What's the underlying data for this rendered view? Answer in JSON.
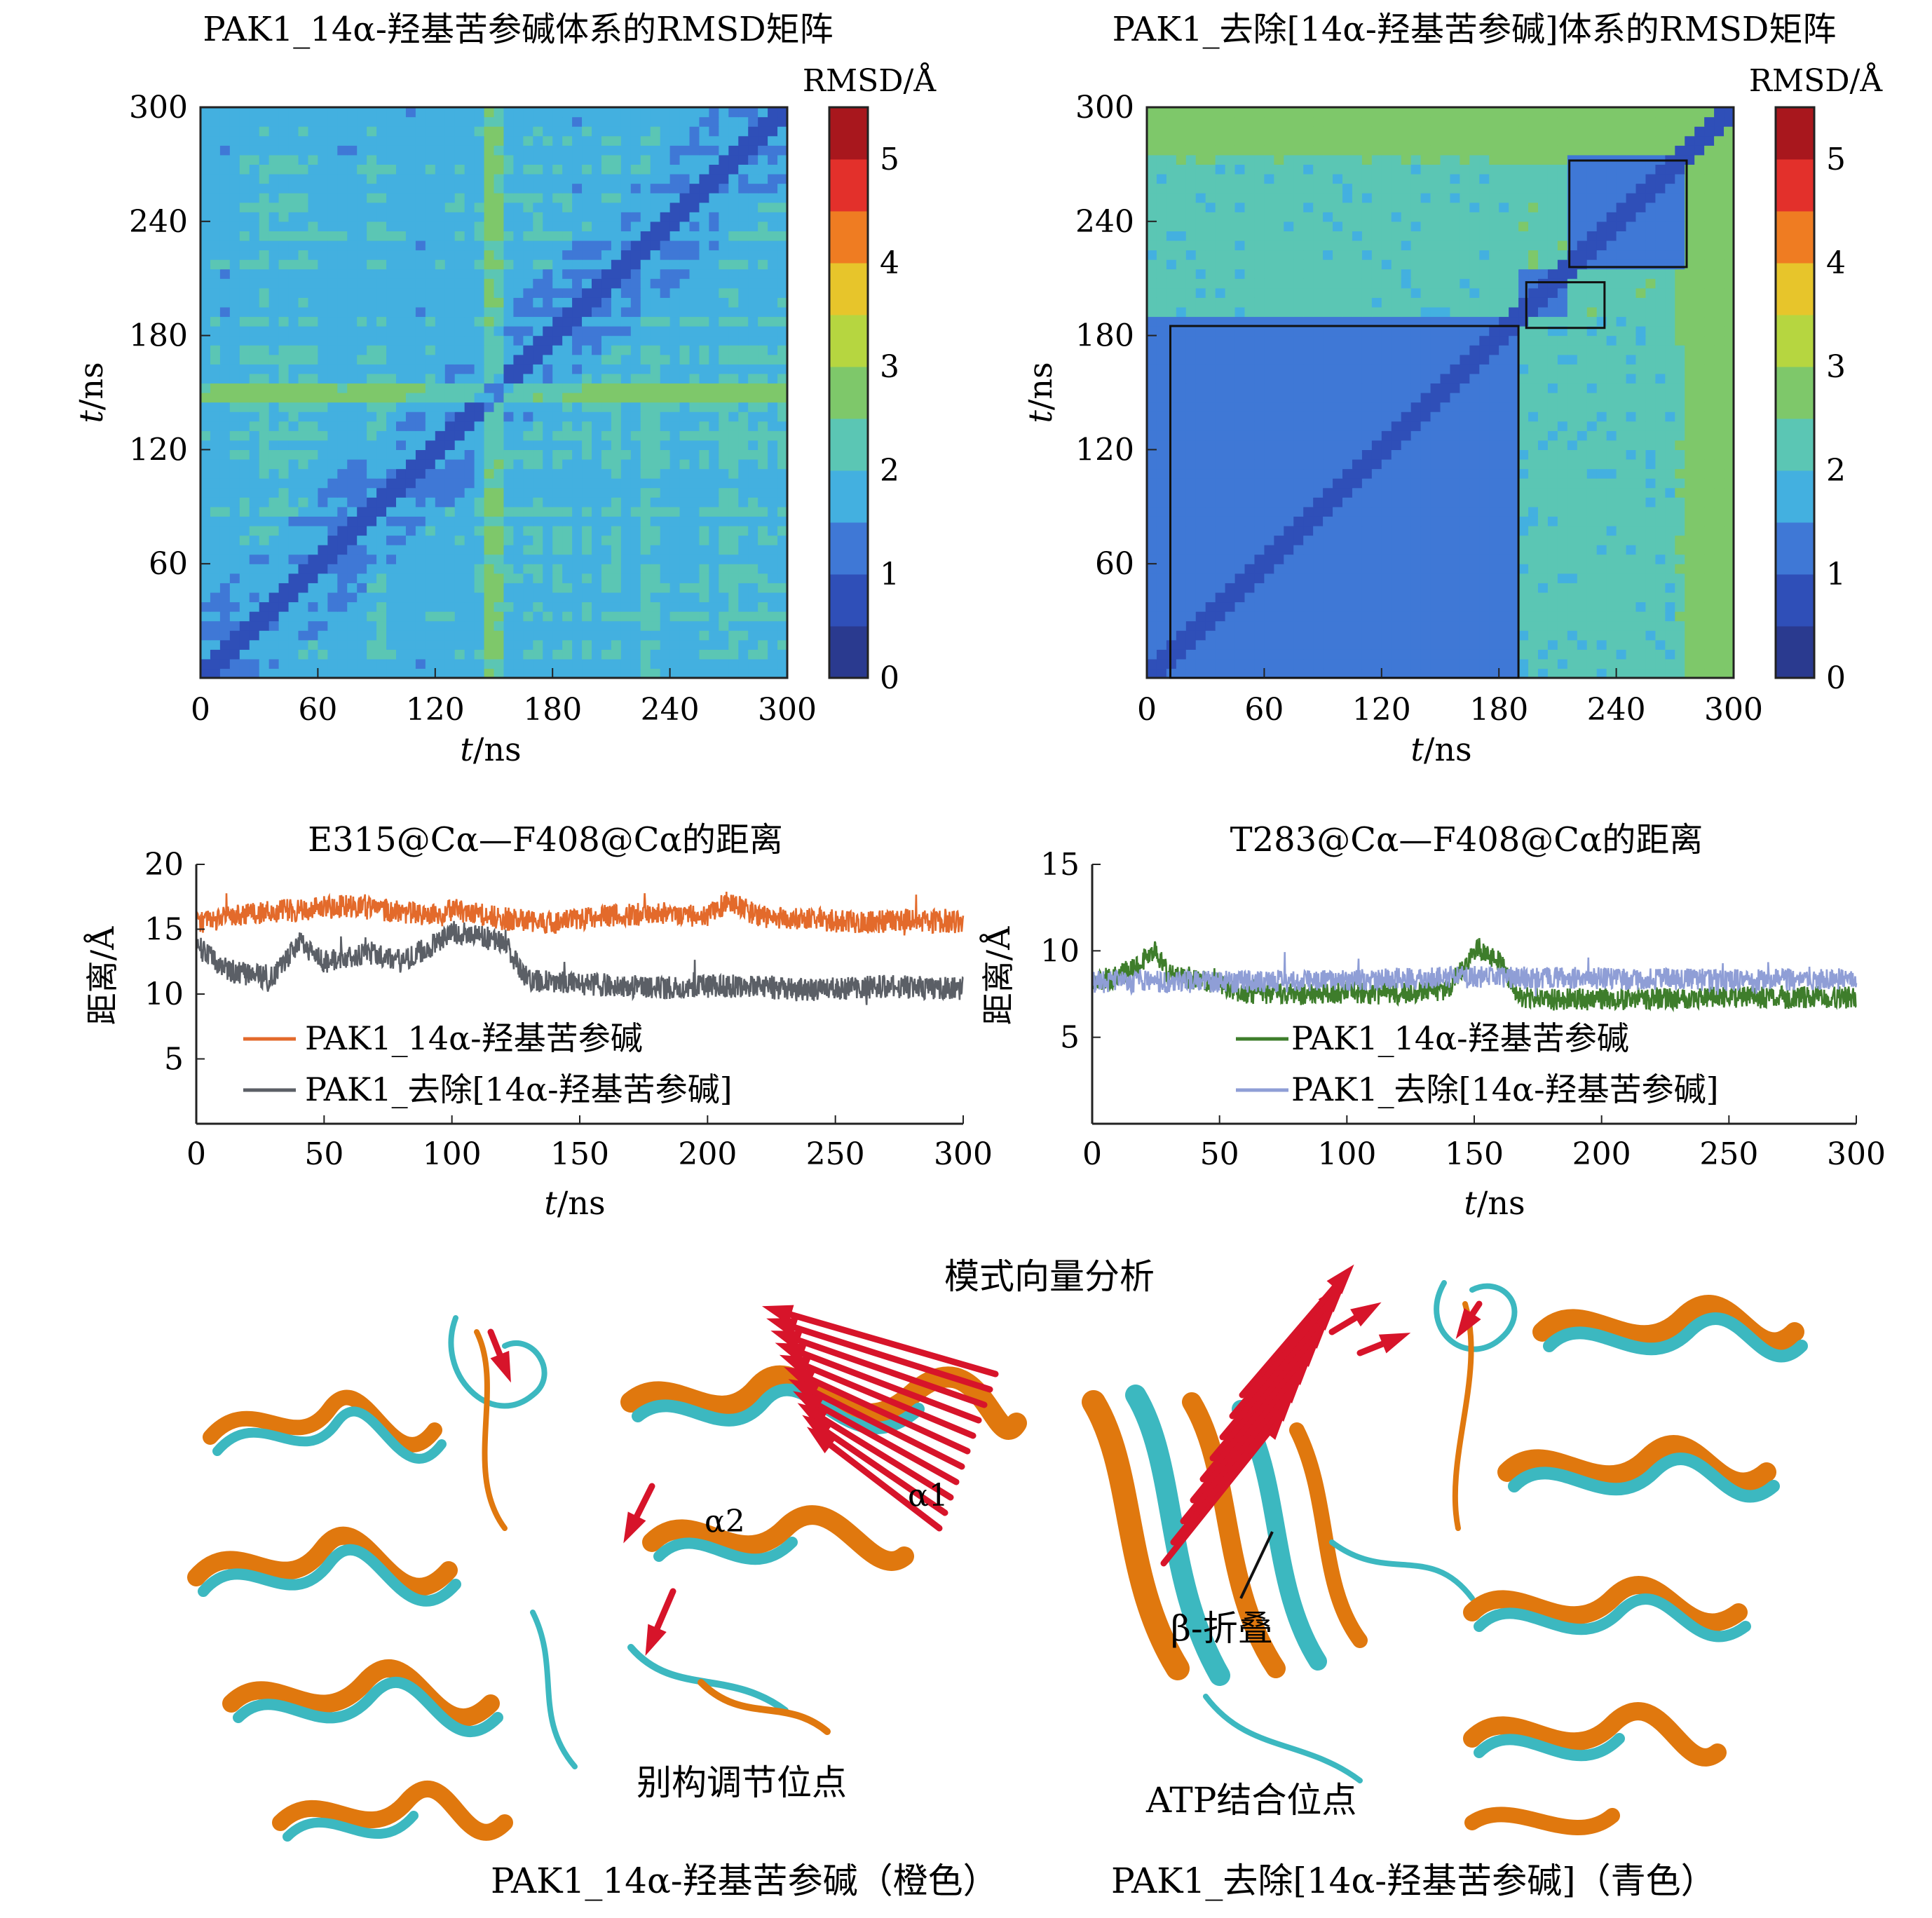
{
  "chart_data": [
    {
      "type": "heatmap",
      "title": "PAK1_14α-羟基苦参碱体系的RMSD矩阵",
      "xlabel_italic": "t",
      "xlabel_unit": "/ns",
      "ylabel_italic": "t",
      "ylabel_unit": "/ns",
      "xlim": [
        0,
        300
      ],
      "ylim": [
        0,
        300
      ],
      "xticks": [
        "0",
        "60",
        "120",
        "180",
        "240",
        "300"
      ],
      "yticks": [
        "60",
        "120",
        "180",
        "240",
        "300"
      ],
      "colorbar": {
        "label": "RMSD/Å",
        "range": [
          0,
          5.5
        ],
        "ticks": [
          "0",
          "1",
          "2",
          "3",
          "4",
          "5"
        ]
      },
      "pattern": {
        "base_rmsd": 1.9,
        "diagonal_rmsd": 0.7,
        "stripes_ns": [
          150,
          155
        ]
      },
      "boxes_ns": []
    },
    {
      "type": "heatmap",
      "title": "PAK1_去除[14α-羟基苦参碱]体系的RMSD矩阵",
      "xlabel_italic": "t",
      "xlabel_unit": "/ns",
      "ylabel_italic": "t",
      "ylabel_unit": "/ns",
      "xlim": [
        0,
        300
      ],
      "ylim": [
        0,
        300
      ],
      "xticks": [
        "0",
        "60",
        "120",
        "180",
        "240",
        "300"
      ],
      "yticks": [
        "60",
        "120",
        "180",
        "240",
        "300"
      ],
      "colorbar": {
        "label": "RMSD/Å",
        "range": [
          0,
          5.5
        ],
        "ticks": [
          "0",
          "1",
          "2",
          "3",
          "4",
          "5"
        ]
      },
      "pattern": {
        "block_rmsd": 1.1,
        "off_block_rmsd": 2.4
      },
      "boxes_ns": [
        [
          12,
          0,
          190,
          185
        ],
        [
          194,
          184,
          234,
          208
        ],
        [
          216,
          216,
          276,
          272
        ]
      ]
    },
    {
      "type": "line",
      "title": "E315@Cα—F408@Cα的距离",
      "xlabel_italic": "t",
      "xlabel_unit": "/ns",
      "ylabel": "距离/Å",
      "xlim": [
        0,
        300
      ],
      "ylim": [
        0,
        20
      ],
      "xticks": [
        "0",
        "50",
        "100",
        "150",
        "200",
        "250",
        "300"
      ],
      "yticks": [
        "5",
        "10",
        "15",
        "20"
      ],
      "legend": "bottom-left",
      "series": [
        {
          "name": "PAK1_14α-羟基苦参碱",
          "color": "#e36a2b",
          "x": [
            0,
            20,
            40,
            60,
            80,
            95,
            100,
            120,
            140,
            160,
            180,
            200,
            208,
            220,
            240,
            260,
            280,
            300
          ],
          "y": [
            15.5,
            16.2,
            16.5,
            16.8,
            16.3,
            16.0,
            16.5,
            15.8,
            15.5,
            16.0,
            16.2,
            16.0,
            17.2,
            16.0,
            15.8,
            15.5,
            15.7,
            15.5
          ]
        },
        {
          "name": "PAK1_去除[14α-羟基苦参碱]",
          "color": "#5b5f66",
          "x": [
            0,
            10,
            20,
            30,
            40,
            50,
            60,
            70,
            80,
            90,
            100,
            110,
            120,
            126,
            130,
            150,
            180,
            210,
            240,
            270,
            300
          ],
          "y": [
            13.8,
            12.0,
            11.5,
            11.2,
            14.0,
            12.5,
            12.8,
            13.2,
            12.5,
            13.5,
            14.8,
            14.5,
            14.0,
            12.2,
            11.0,
            10.8,
            10.5,
            10.6,
            10.3,
            10.6,
            10.4
          ]
        }
      ]
    },
    {
      "type": "line",
      "title": "T283@Cα—F408@Cα的距离",
      "xlabel_italic": "t",
      "xlabel_unit": "/ns",
      "ylabel": "距离/Å",
      "xlim": [
        0,
        300
      ],
      "ylim": [
        0,
        15
      ],
      "xticks": [
        "0",
        "50",
        "100",
        "150",
        "200",
        "250",
        "300"
      ],
      "yticks": [
        "5",
        "10",
        "15"
      ],
      "legend": "bottom-left",
      "series": [
        {
          "name": "PAK1_14α-羟基苦参碱",
          "color": "#3e7d2b",
          "x": [
            0,
            10,
            20,
            25,
            30,
            40,
            60,
            80,
            100,
            120,
            140,
            148,
            152,
            160,
            168,
            180,
            200,
            240,
            270,
            300
          ],
          "y": [
            8.2,
            8.5,
            9.5,
            10.0,
            8.6,
            8.4,
            7.6,
            7.5,
            7.6,
            7.5,
            7.8,
            9.6,
            10.2,
            9.4,
            7.3,
            7.2,
            7.2,
            7.3,
            7.3,
            7.3
          ]
        },
        {
          "name": "PAK1_去除[14α-羟基苦参碱]",
          "color": "#8f9ed6",
          "x": [
            0,
            50,
            100,
            150,
            200,
            250,
            300
          ],
          "y": [
            8.2,
            8.2,
            8.3,
            8.5,
            8.4,
            8.3,
            8.4
          ]
        }
      ]
    }
  ],
  "structure_panel": {
    "title": "模式向量分析",
    "left": {
      "caption": "PAK1_14α-羟基苦参碱（橙色）",
      "site": "别构调节位点",
      "labels": [
        "α2",
        "α1"
      ]
    },
    "right": {
      "caption": "PAK1_去除[14α-羟基苦参碱]（青色）",
      "site": "ATP结合位点",
      "labels": [
        "β-折叠"
      ]
    },
    "colors": {
      "orange": "#e0780e",
      "cyan": "#3cb8c0",
      "arrow": "#d7142a"
    }
  }
}
